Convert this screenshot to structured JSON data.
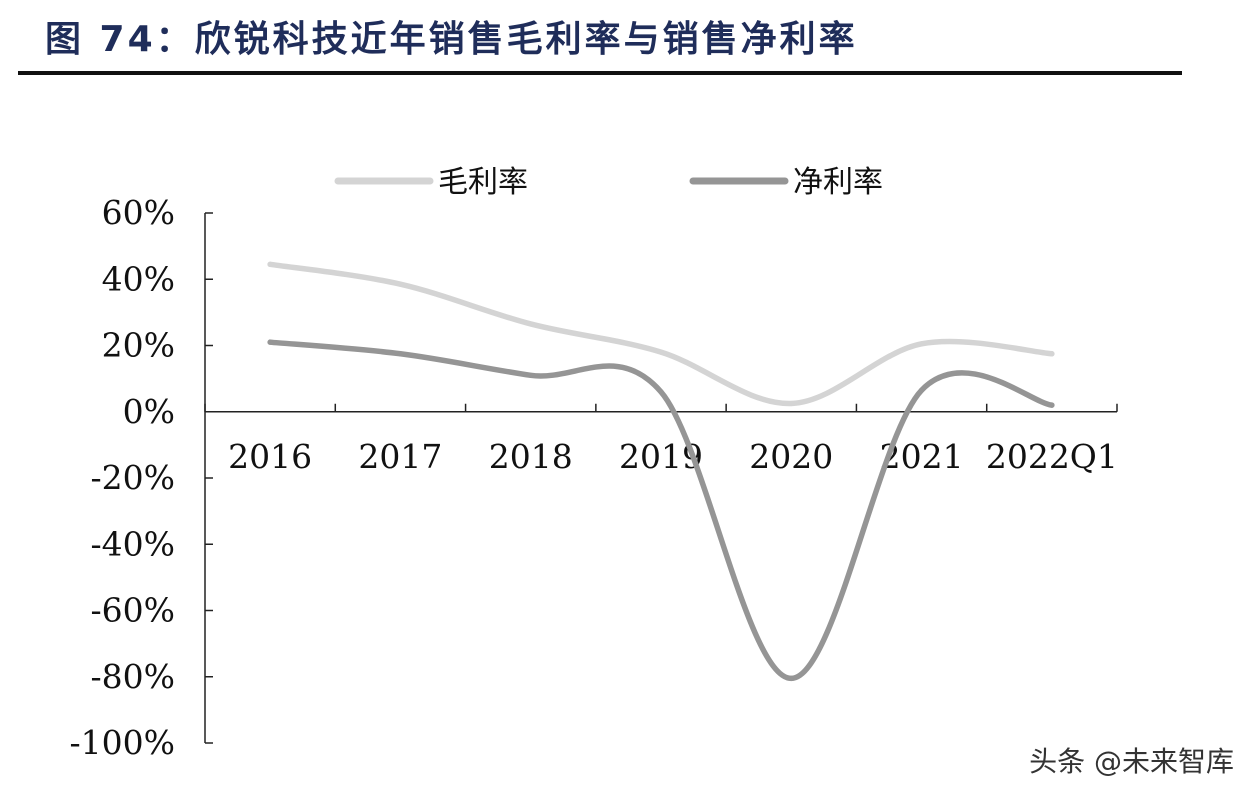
{
  "header": {
    "title": "图 74：欣锐科技近年销售毛利率与销售净利率"
  },
  "watermark": "头条 @未来智库",
  "chart_data": {
    "type": "line",
    "categories": [
      "2016",
      "2017",
      "2018",
      "2019",
      "2020",
      "2021",
      "2022Q1"
    ],
    "series": [
      {
        "name": "毛利率",
        "values": [
          44.5,
          38.5,
          26.5,
          18.0,
          2.5,
          20.5,
          17.5
        ],
        "color": "#d4d4d4"
      },
      {
        "name": "净利率",
        "values": [
          21.0,
          17.5,
          11.0,
          6.0,
          -80.5,
          6.5,
          2.0
        ],
        "color": "#959595"
      }
    ],
    "y_ticks": [
      "60%",
      "40%",
      "20%",
      "0%",
      "-20%",
      "-40%",
      "-60%",
      "-80%",
      "-100%"
    ],
    "ylim": [
      -100,
      60
    ],
    "smooth": true,
    "legend_position": "top"
  }
}
